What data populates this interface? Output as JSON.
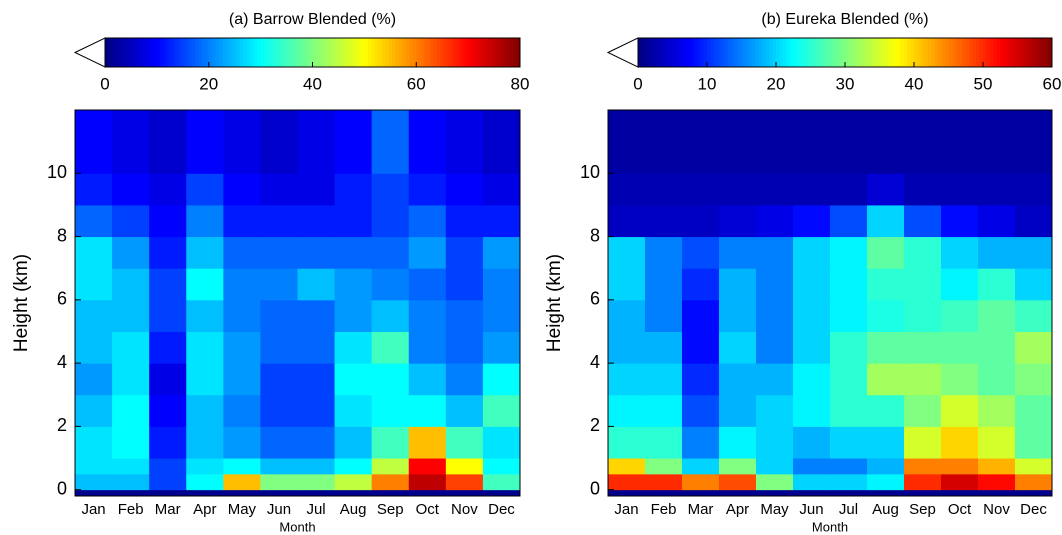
{
  "chart_data": [
    {
      "type": "heatmap",
      "title": "(a) Barrow Blended (%)",
      "xlabel": "Month",
      "ylabel": "Height (km)",
      "categories": [
        "Jan",
        "Feb",
        "Mar",
        "Apr",
        "May",
        "Jun",
        "Jul",
        "Aug",
        "Sep",
        "Oct",
        "Nov",
        "Dec"
      ],
      "y_bins": [
        0,
        0.5,
        1,
        2,
        3,
        4,
        5,
        6,
        7,
        8,
        9,
        10,
        12
      ],
      "ylim": [
        -0.2,
        12
      ],
      "yticks": [
        0,
        2,
        4,
        6,
        8,
        10
      ],
      "clim": [
        0,
        80
      ],
      "cticks": [
        0,
        20,
        40,
        60,
        80
      ],
      "colormap": "jet",
      "values": [
        [
          25,
          25,
          15,
          30,
          55,
          40,
          40,
          45,
          60,
          75,
          65,
          35
        ],
        [
          28,
          28,
          15,
          28,
          30,
          25,
          25,
          30,
          45,
          70,
          50,
          30
        ],
        [
          28,
          30,
          12,
          25,
          22,
          18,
          18,
          25,
          35,
          55,
          35,
          28
        ],
        [
          25,
          30,
          10,
          25,
          20,
          15,
          15,
          28,
          30,
          30,
          25,
          35
        ],
        [
          22,
          28,
          8,
          28,
          22,
          15,
          15,
          30,
          30,
          25,
          20,
          30
        ],
        [
          25,
          28,
          12,
          28,
          22,
          18,
          18,
          28,
          35,
          20,
          18,
          22
        ],
        [
          25,
          25,
          15,
          25,
          20,
          18,
          18,
          22,
          25,
          20,
          18,
          20
        ],
        [
          28,
          25,
          15,
          30,
          20,
          20,
          25,
          22,
          20,
          18,
          15,
          20
        ],
        [
          28,
          22,
          12,
          25,
          18,
          18,
          18,
          18,
          18,
          22,
          15,
          22
        ],
        [
          18,
          15,
          10,
          20,
          12,
          12,
          12,
          12,
          15,
          18,
          12,
          12
        ],
        [
          12,
          10,
          8,
          15,
          10,
          8,
          8,
          12,
          15,
          12,
          10,
          8
        ],
        [
          10,
          8,
          6,
          10,
          8,
          6,
          8,
          10,
          18,
          10,
          8,
          6
        ]
      ]
    },
    {
      "type": "heatmap",
      "title": "(b) Eureka Blended (%)",
      "xlabel": "Month",
      "ylabel": "Height (km)",
      "categories": [
        "Jan",
        "Feb",
        "Mar",
        "Apr",
        "May",
        "Jun",
        "Jul",
        "Aug",
        "Sep",
        "Oct",
        "Nov",
        "Dec"
      ],
      "y_bins": [
        0,
        0.5,
        1,
        2,
        3,
        4,
        5,
        6,
        7,
        8,
        9,
        10,
        12
      ],
      "ylim": [
        -0.2,
        12
      ],
      "yticks": [
        0,
        2,
        4,
        6,
        8,
        10
      ],
      "clim": [
        0,
        60
      ],
      "cticks": [
        0,
        10,
        20,
        30,
        40,
        50,
        60
      ],
      "colormap": "jet",
      "values": [
        [
          50,
          50,
          45,
          48,
          30,
          20,
          20,
          22,
          50,
          55,
          52,
          45
        ],
        [
          40,
          30,
          20,
          30,
          20,
          15,
          15,
          18,
          45,
          45,
          42,
          35
        ],
        [
          25,
          25,
          15,
          22,
          20,
          18,
          20,
          20,
          35,
          40,
          35,
          28
        ],
        [
          22,
          22,
          12,
          18,
          20,
          22,
          25,
          25,
          30,
          35,
          32,
          28
        ],
        [
          20,
          20,
          10,
          18,
          18,
          22,
          25,
          32,
          32,
          30,
          28,
          30
        ],
        [
          18,
          18,
          8,
          20,
          15,
          20,
          25,
          28,
          28,
          28,
          28,
          32
        ],
        [
          18,
          15,
          8,
          18,
          15,
          20,
          22,
          24,
          25,
          26,
          28,
          26
        ],
        [
          20,
          15,
          10,
          18,
          15,
          20,
          22,
          25,
          25,
          22,
          25,
          20
        ],
        [
          20,
          15,
          12,
          15,
          15,
          20,
          22,
          28,
          25,
          20,
          18,
          18
        ],
        [
          4,
          4,
          4,
          5,
          6,
          8,
          12,
          20,
          12,
          8,
          6,
          4
        ],
        [
          3,
          3,
          3,
          3,
          3,
          3,
          3,
          5,
          3,
          3,
          3,
          3
        ],
        [
          2,
          2,
          2,
          2,
          2,
          2,
          2,
          2,
          2,
          2,
          2,
          2
        ]
      ]
    }
  ]
}
